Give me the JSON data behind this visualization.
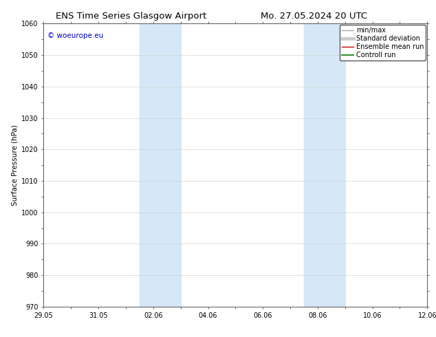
{
  "title_left": "ENS Time Series Glasgow Airport",
  "title_right": "Mo. 27.05.2024 20 UTC",
  "ylabel": "Surface Pressure (hPa)",
  "ylim": [
    970,
    1060
  ],
  "yticks": [
    970,
    980,
    990,
    1000,
    1010,
    1020,
    1030,
    1040,
    1050,
    1060
  ],
  "xlim": [
    0,
    14
  ],
  "xtick_labels": [
    "29.05",
    "31.05",
    "02.06",
    "04.06",
    "06.06",
    "08.06",
    "10.06",
    "12.06"
  ],
  "xtick_positions": [
    0,
    2,
    4,
    6,
    8,
    10,
    12,
    14
  ],
  "shaded_bands": [
    {
      "x_start": 3.5,
      "x_end": 5.0
    },
    {
      "x_start": 9.5,
      "x_end": 11.0
    }
  ],
  "shaded_color": "#d6e8f7",
  "background_color": "#ffffff",
  "watermark_text": "© woeurope.eu",
  "watermark_color": "#0000cc",
  "legend_entries": [
    {
      "label": "min/max",
      "color": "#aaaaaa",
      "lw": 1.0
    },
    {
      "label": "Standard deviation",
      "color": "#cccccc",
      "lw": 3.5
    },
    {
      "label": "Ensemble mean run",
      "color": "#cc0000",
      "lw": 1.0
    },
    {
      "label": "Controll run",
      "color": "#007700",
      "lw": 1.2
    }
  ],
  "grid_color": "#cccccc",
  "spine_color": "#555555",
  "title_fontsize": 9.5,
  "axis_label_fontsize": 7.5,
  "tick_fontsize": 7,
  "legend_fontsize": 7,
  "watermark_fontsize": 7.5
}
